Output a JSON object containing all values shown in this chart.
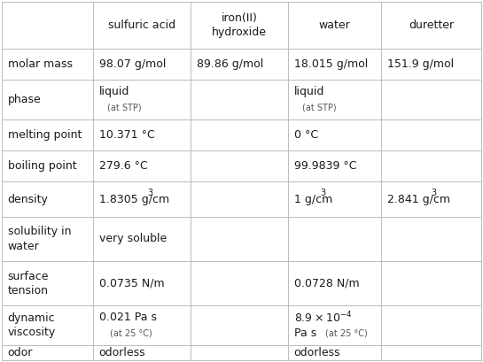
{
  "bg_color": "#ffffff",
  "text_color": "#1a1a1a",
  "grid_color": "#bbbbbb",
  "label_color": "#555555",
  "col_headers": [
    "sulfuric acid",
    "iron(II)\nhydroxide",
    "water",
    "duretter"
  ],
  "row_labels": [
    "molar mass",
    "phase",
    "melting point",
    "boiling point",
    "density",
    "solubility in\nwater",
    "surface\ntension",
    "dynamic\nviscosity",
    "odor"
  ],
  "figsize": [
    5.45,
    4.09
  ],
  "dpi": 100
}
